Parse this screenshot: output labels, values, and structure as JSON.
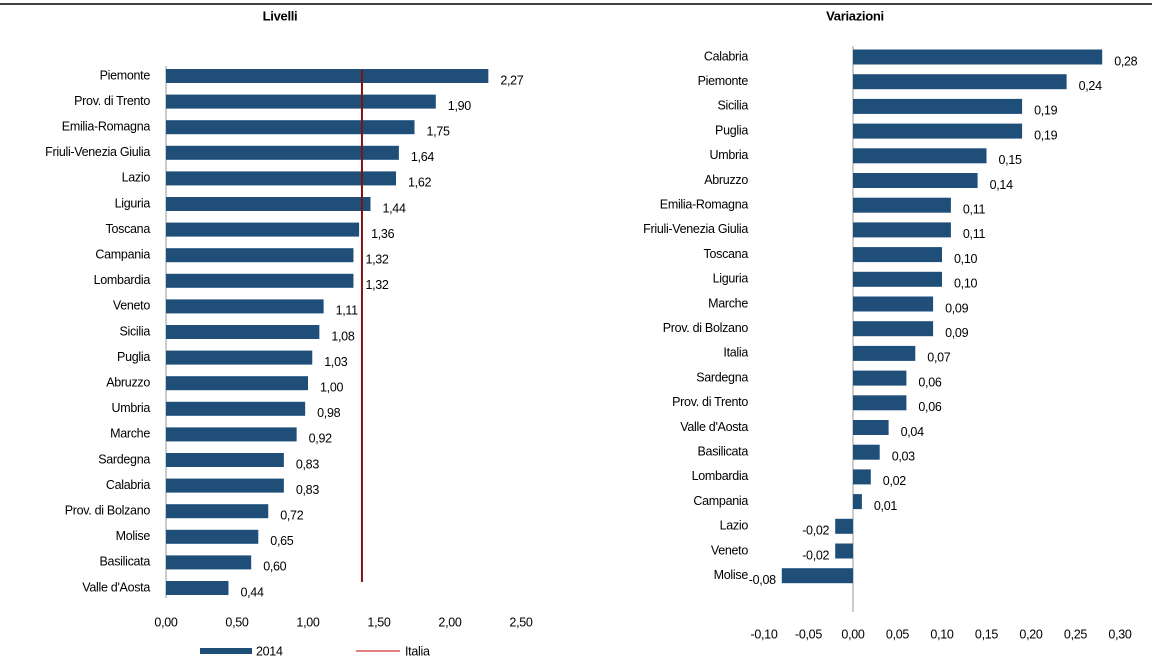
{
  "chart_data": [
    {
      "type": "bar",
      "orientation": "horizontal",
      "title": "Livelli",
      "categories": [
        "Piemonte",
        "Prov. di Trento",
        "Emilia-Romagna",
        "Friuli-Venezia Giulia",
        "Lazio",
        "Liguria",
        "Toscana",
        "Campania",
        "Lombardia",
        "Veneto",
        "Sicilia",
        "Puglia",
        "Abruzzo",
        "Umbria",
        "Marche",
        "Sardegna",
        "Calabria",
        "Prov. di Bolzano",
        "Molise",
        "Basilicata",
        "Valle d'Aosta"
      ],
      "series": [
        {
          "name": "2014",
          "color": "#1f4e79",
          "values": [
            2.27,
            1.9,
            1.75,
            1.64,
            1.62,
            1.44,
            1.36,
            1.32,
            1.32,
            1.11,
            1.08,
            1.03,
            1.0,
            0.98,
            0.92,
            0.83,
            0.83,
            0.72,
            0.65,
            0.6,
            0.44
          ],
          "value_labels": [
            "2,27",
            "1,90",
            "1,75",
            "1,64",
            "1,62",
            "1,44",
            "1,36",
            "1,32",
            "1,32",
            "1,11",
            "1,08",
            "1,03",
            "1,00",
            "0,98",
            "0,92",
            "0,83",
            "0,83",
            "0,72",
            "0,65",
            "0,60",
            "0,44"
          ]
        }
      ],
      "reference_line": {
        "name": "Italia",
        "value": 1.38,
        "color": "#7b1515"
      },
      "xlim": [
        0,
        2.5
      ],
      "xticks": [
        {
          "value": 0,
          "label": "0,00"
        },
        {
          "value": 0.5,
          "label": "0,50"
        },
        {
          "value": 1,
          "label": "1,00"
        },
        {
          "value": 1.5,
          "label": "1,50"
        },
        {
          "value": 2,
          "label": "2,00"
        },
        {
          "value": 2.5,
          "label": "2,50"
        }
      ],
      "legend": "bottom"
    },
    {
      "type": "bar",
      "orientation": "horizontal",
      "title": "Variazioni",
      "categories": [
        "Calabria",
        "Piemonte",
        "Sicilia",
        "Puglia",
        "Umbria",
        "Abruzzo",
        "Emilia-Romagna",
        "Friuli-Venezia Giulia",
        "Toscana",
        "Liguria",
        "Marche",
        "Prov. di Bolzano",
        "Italia",
        "Sardegna",
        "Prov. di Trento",
        "Valle d'Aosta",
        "Basilicata",
        "Lombardia",
        "Campania",
        "Lazio",
        "Veneto",
        "Molise"
      ],
      "color": "#1f4e79",
      "values": [
        0.28,
        0.24,
        0.19,
        0.19,
        0.15,
        0.14,
        0.11,
        0.11,
        0.1,
        0.1,
        0.09,
        0.09,
        0.07,
        0.06,
        0.06,
        0.04,
        0.03,
        0.02,
        0.01,
        -0.02,
        -0.02,
        -0.08
      ],
      "value_labels": [
        "0,28",
        "0,24",
        "0,19",
        "0,19",
        "0,15",
        "0,14",
        "0,11",
        "0,11",
        "0,10",
        "0,10",
        "0,09",
        "0,09",
        "0,07",
        "0,06",
        "0,06",
        "0,04",
        "0,03",
        "0,02",
        "0,01",
        "-0,02",
        "-0,02",
        "-0,08"
      ],
      "xlim": [
        -0.1,
        0.3
      ],
      "xticks": [
        {
          "value": -0.1,
          "label": "-0,10"
        },
        {
          "value": -0.05,
          "label": "-0,05"
        },
        {
          "value": 0,
          "label": "0,00"
        },
        {
          "value": 0.05,
          "label": "0,05"
        },
        {
          "value": 0.1,
          "label": "0,10"
        },
        {
          "value": 0.15,
          "label": "0,15"
        },
        {
          "value": 0.2,
          "label": "0,20"
        },
        {
          "value": 0.25,
          "label": "0,25"
        },
        {
          "value": 0.3,
          "label": "0,30"
        }
      ]
    }
  ]
}
